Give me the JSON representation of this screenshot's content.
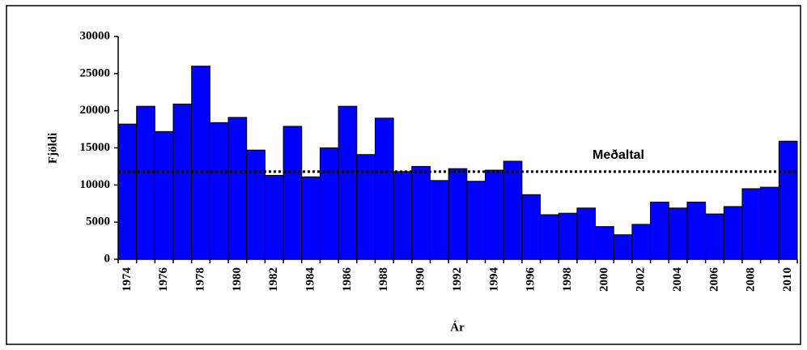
{
  "chart_data": {
    "type": "bar",
    "y_label": "Fjöldi",
    "x_label": "Ár",
    "categories": [
      "1974",
      null,
      "1976",
      null,
      "1978",
      null,
      "1980",
      null,
      "1982",
      null,
      "1984",
      null,
      "1986",
      null,
      "1988",
      null,
      "1990",
      null,
      "1992",
      null,
      "1994",
      null,
      "1996",
      null,
      "1998",
      null,
      "2000",
      null,
      "2002",
      null,
      "2004",
      null,
      "2006",
      null,
      "2008",
      null,
      "2010"
    ],
    "values": [
      18200,
      20600,
      17200,
      20900,
      26000,
      18400,
      19100,
      14700,
      11300,
      17900,
      11100,
      15000,
      20600,
      14100,
      19000,
      11800,
      12500,
      10600,
      12200,
      10500,
      12000,
      13200,
      8700,
      6000,
      6200,
      6900,
      4400,
      3300,
      4700,
      7700,
      6900,
      7700,
      6100,
      7100,
      9500,
      9700,
      15900
    ],
    "color": "#0000ff",
    "ylim": [
      0,
      30000
    ],
    "yticks": [
      0,
      5000,
      10000,
      15000,
      20000,
      25000,
      30000
    ],
    "reference_line": {
      "value": 11800,
      "label": "Meðaltal"
    }
  }
}
